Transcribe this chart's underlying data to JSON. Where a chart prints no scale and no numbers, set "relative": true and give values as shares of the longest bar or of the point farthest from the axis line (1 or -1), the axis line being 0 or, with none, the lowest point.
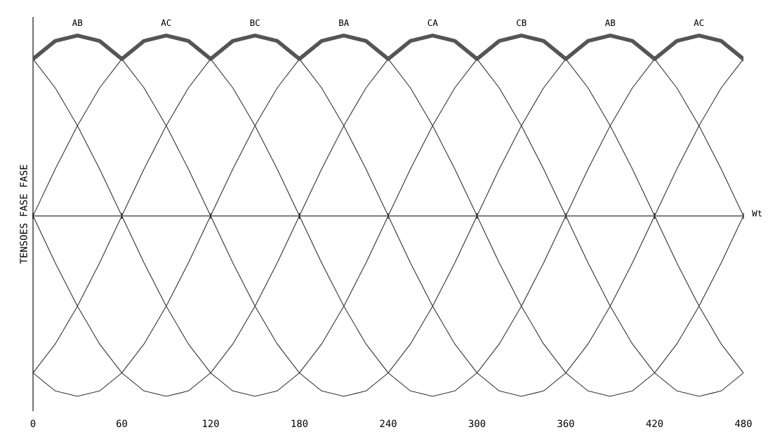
{
  "chart_data": {
    "type": "line",
    "relative": true,
    "ylabel": "TENSOES FASE FASE",
    "xlabel": "Wt",
    "x": [
      0,
      15,
      30,
      45,
      60,
      75,
      90,
      105,
      120,
      135,
      150,
      165,
      180,
      195,
      210,
      225,
      240,
      255,
      270,
      285,
      300,
      315,
      330,
      345,
      360,
      375,
      390,
      405,
      420,
      435,
      450,
      465,
      480
    ],
    "xlim": [
      0,
      480
    ],
    "xticks": [
      {
        "value": 0,
        "label": "0"
      },
      60,
      120,
      180,
      240,
      300,
      360,
      420,
      480
    ],
    "grid": false,
    "legend": false,
    "marker": "none",
    "line_style": "solid",
    "ref_lines": [
      {
        "axis": "y",
        "value": 0,
        "color": "#333333"
      }
    ],
    "series": [
      {
        "color": "#333333",
        "values": [
          0.87,
          0.97,
          1,
          0.97,
          0.87,
          0.71,
          0.5,
          0.26,
          0,
          -0.26,
          -0.5,
          -0.71,
          -0.87,
          -0.97,
          -1,
          -0.97,
          -0.87,
          -0.71,
          -0.5,
          -0.26,
          0,
          0.26,
          0.5,
          0.71,
          0.87,
          0.97,
          1,
          0.97,
          0.87,
          0.71,
          0.5,
          0.26,
          0
        ]
      },
      {
        "color": "#333333",
        "values": [
          0,
          0.26,
          0.5,
          0.71,
          0.87,
          0.97,
          1,
          0.97,
          0.87,
          0.71,
          0.5,
          0.26,
          0,
          -0.26,
          -0.5,
          -0.71,
          -0.87,
          -0.97,
          -1,
          -0.97,
          -0.87,
          -0.71,
          -0.5,
          -0.26,
          0,
          0.26,
          0.5,
          0.71,
          0.87,
          0.97,
          1,
          0.97,
          0.87
        ]
      },
      {
        "color": "#333333",
        "values": [
          -0.87,
          -0.71,
          -0.5,
          -0.26,
          0,
          0.26,
          0.5,
          0.71,
          0.87,
          0.97,
          1,
          0.97,
          0.87,
          0.71,
          0.5,
          0.26,
          0,
          -0.26,
          -0.5,
          -0.71,
          -0.87,
          -0.97,
          -1,
          -0.97,
          -0.87,
          -0.71,
          -0.5,
          -0.26,
          0,
          0.26,
          0.5,
          0.71,
          0.87
        ]
      },
      {
        "color": "#333333",
        "values": [
          -0.87,
          -0.97,
          -1,
          -0.97,
          -0.87,
          -0.71,
          -0.5,
          -0.26,
          0,
          0.26,
          0.5,
          0.71,
          0.87,
          0.97,
          1,
          0.97,
          0.87,
          0.71,
          0.5,
          0.26,
          0,
          -0.26,
          -0.5,
          -0.71,
          -0.87,
          -0.97,
          -1,
          -0.97,
          -0.87,
          -0.71,
          -0.5,
          -0.26,
          0
        ]
      },
      {
        "color": "#333333",
        "values": [
          0,
          -0.26,
          -0.5,
          -0.71,
          -0.87,
          -0.97,
          -1,
          -0.97,
          -0.87,
          -0.71,
          -0.5,
          -0.26,
          0,
          0.26,
          0.5,
          0.71,
          0.87,
          0.97,
          1,
          0.97,
          0.87,
          0.71,
          0.5,
          0.26,
          0,
          -0.26,
          -0.5,
          -0.71,
          -0.87,
          -0.97,
          -1,
          -0.97,
          -0.87
        ]
      },
      {
        "color": "#333333",
        "values": [
          0.87,
          0.71,
          0.5,
          0.26,
          0,
          -0.26,
          -0.5,
          -0.71,
          -0.87,
          -0.97,
          -1,
          -0.97,
          -0.87,
          -0.71,
          -0.5,
          -0.26,
          0,
          0.26,
          0.5,
          0.71,
          0.87,
          0.97,
          1,
          0.97,
          0.87,
          0.71,
          0.5,
          0.26,
          0,
          -0.26,
          -0.5,
          -0.71,
          -0.87
        ]
      },
      {
        "color": "#555555",
        "values": [
          0.87,
          0.97,
          1,
          0.97,
          0.87,
          0.97,
          1,
          0.97,
          0.87,
          0.97,
          1,
          0.97,
          0.87,
          0.97,
          1,
          0.97,
          0.87,
          0.97,
          1,
          0.97,
          0.87,
          0.97,
          1,
          0.97,
          0.87,
          0.97,
          1,
          0.97,
          0.87,
          0.97,
          1,
          0.97,
          0.87
        ]
      }
    ],
    "annotations": [
      {
        "text": "AB",
        "x": 30,
        "y": 1
      },
      {
        "text": "AC",
        "x": 90,
        "y": 1
      },
      {
        "text": "BC",
        "x": 150,
        "y": 1
      },
      {
        "text": "BA",
        "x": 210,
        "y": 1
      },
      {
        "text": "CA",
        "x": 270,
        "y": 1
      },
      {
        "text": "CB",
        "x": 330,
        "y": 1
      },
      {
        "text": "AB",
        "x": 390,
        "y": 1
      },
      {
        "text": "AC",
        "x": 450,
        "y": 1
      }
    ]
  }
}
